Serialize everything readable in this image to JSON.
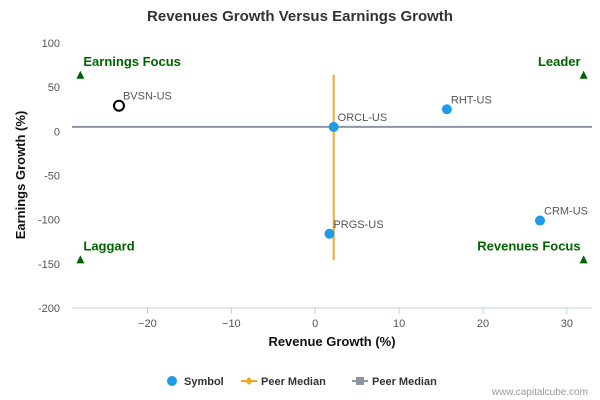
{
  "chart_data": {
    "type": "scatter",
    "title": "Revenues Growth Versus Earnings Growth",
    "xlabel": "Revenue Growth (%)",
    "ylabel": "Earnings Growth (%)",
    "xlim": [
      -29,
      33
    ],
    "ylim": [
      -200,
      100
    ],
    "xticks": [
      -20,
      -10,
      0,
      10,
      20,
      30
    ],
    "yticks": [
      100,
      50,
      0,
      -50,
      -100,
      -150,
      -200
    ],
    "grid": false,
    "legend_position": "bottom",
    "points": [
      {
        "label": "BVSN-US",
        "x": -23.4,
        "y": 29,
        "style": "hollow"
      },
      {
        "label": "ORCL-US",
        "x": 2.2,
        "y": 5,
        "style": "filled"
      },
      {
        "label": "RHT-US",
        "x": 15.7,
        "y": 25,
        "style": "filled"
      },
      {
        "label": "PRGS-US",
        "x": 1.7,
        "y": -116,
        "style": "filled"
      },
      {
        "label": "CRM-US",
        "x": 26.8,
        "y": -101,
        "style": "filled"
      }
    ],
    "peer_median": {
      "x": 2.2,
      "y": 5,
      "x_line_y_range": [
        -146,
        64
      ],
      "y_line_x_range": [
        -29,
        33
      ]
    },
    "quadrants": [
      {
        "label": "Earnings Focus",
        "position": "top-left",
        "marker_x": -28,
        "marker_y": 64
      },
      {
        "label": "Leader",
        "position": "top-right",
        "marker_x": 32,
        "marker_y": 64
      },
      {
        "label": "Laggard",
        "position": "bottom-left",
        "marker_x": -28,
        "marker_y": -145
      },
      {
        "label": "Revenues Focus",
        "position": "bottom-right",
        "marker_x": 32,
        "marker_y": -145
      }
    ],
    "legend": [
      {
        "label": "Symbol",
        "type": "circle"
      },
      {
        "label": "Peer Median",
        "type": "vertical-line"
      },
      {
        "label": "Peer Median",
        "type": "horizontal-line"
      }
    ]
  },
  "colors": {
    "symbol": "#1E9BE9",
    "peer_median_vertical": "#F5A623",
    "peer_median_horizontal": "#8C96A3",
    "quadrant": "#006400",
    "axis": "#C0D0E0"
  },
  "credit": "www.capitalcube.com"
}
